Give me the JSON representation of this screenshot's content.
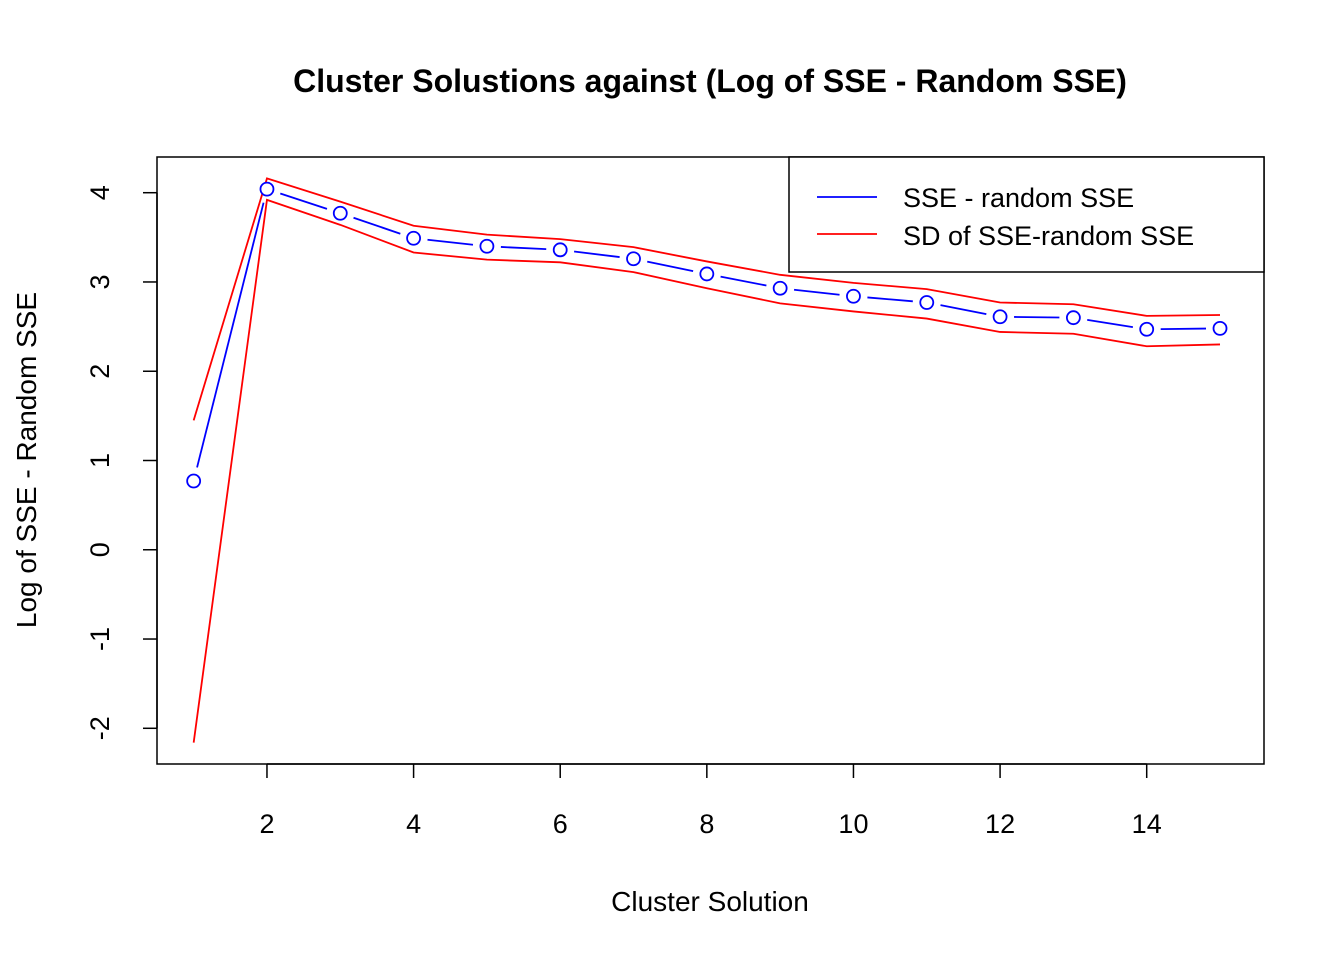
{
  "chart_data": {
    "type": "line",
    "title": "Cluster Solustions against (Log of SSE - Random SSE)",
    "xlabel": "Cluster Solution",
    "ylabel": "Log of SSE - Random SSE",
    "xlim": [
      0.5,
      15.6
    ],
    "ylim": [
      -2.4,
      4.4
    ],
    "x_ticks": [
      2,
      4,
      6,
      8,
      10,
      12,
      14
    ],
    "y_ticks": [
      -2,
      -1,
      0,
      1,
      2,
      3,
      4
    ],
    "grid": false,
    "legend_position": "top-right",
    "x": [
      1,
      2,
      3,
      4,
      5,
      6,
      7,
      8,
      9,
      10,
      11,
      12,
      13,
      14,
      15
    ],
    "series": [
      {
        "name": "SSE - random SSE",
        "color": "#0000ff",
        "style": "b",
        "marker": "open-circle",
        "values": [
          0.77,
          4.04,
          3.77,
          3.49,
          3.4,
          3.36,
          3.26,
          3.09,
          2.93,
          2.84,
          2.77,
          2.61,
          2.6,
          2.47,
          2.48
        ]
      },
      {
        "name": "SD of SSE-random SSE",
        "color": "#ff0000",
        "style": "line",
        "upper": [
          1.45,
          4.16,
          3.9,
          3.63,
          3.53,
          3.48,
          3.39,
          3.23,
          3.08,
          2.99,
          2.92,
          2.77,
          2.75,
          2.62,
          2.63
        ],
        "lower": [
          -2.16,
          3.92,
          3.64,
          3.33,
          3.25,
          3.22,
          3.11,
          2.93,
          2.76,
          2.67,
          2.59,
          2.44,
          2.42,
          2.28,
          2.3
        ]
      }
    ]
  }
}
